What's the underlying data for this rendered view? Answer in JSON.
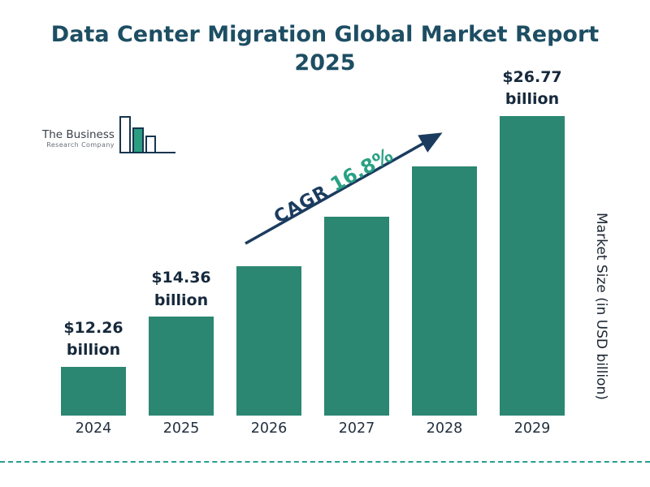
{
  "page": {
    "title_line1": "Data Center Migration Global Market Report",
    "title_line2": "2025"
  },
  "logo": {
    "name_line1": "The Business",
    "name_line2": "Research Company"
  },
  "annotation": {
    "cagr_label": "CAGR",
    "cagr_value": "16.8%"
  },
  "axis": {
    "y_label": "Market Size (in USD billion)"
  },
  "chart_data": {
    "type": "bar",
    "title": "Data Center Migration Global Market Report 2025",
    "categories": [
      "2024",
      "2025",
      "2026",
      "2027",
      "2028",
      "2029"
    ],
    "values": [
      12.26,
      14.36,
      16.77,
      19.59,
      22.88,
      26.77
    ],
    "value_labels": [
      {
        "amount": "$12.26",
        "unit": "billion"
      },
      {
        "amount": "$14.36",
        "unit": "billion"
      },
      null,
      null,
      null,
      {
        "amount": "$26.77",
        "unit": "billion"
      }
    ],
    "xlabel": "",
    "ylabel": "Market Size (in USD billion)",
    "cagr": "16.8%",
    "legend": "none",
    "grid": "off"
  },
  "colors": {
    "bar": "#2b8772",
    "title": "#1d4e63",
    "value_label": "#16293c",
    "cagr_label": "#1b3c5f",
    "cagr_value": "#2aa184",
    "arrow": "#1b3c5f",
    "dashed_line": "#2a9d8f"
  }
}
